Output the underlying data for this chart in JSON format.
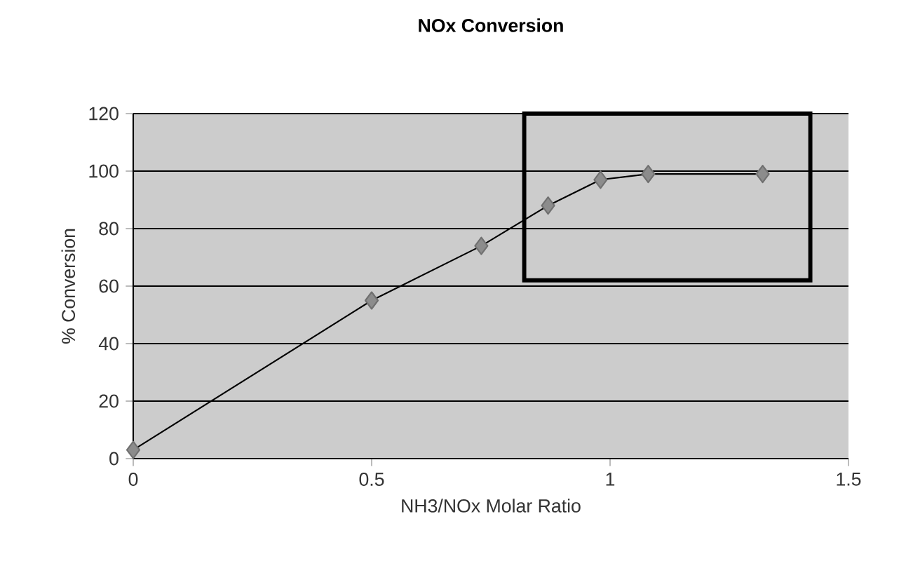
{
  "chart_data": {
    "type": "line",
    "title": "NOx Conversion",
    "xlabel": "NH3/NOx Molar Ratio",
    "ylabel": "% Conversion",
    "x": [
      0,
      0.5,
      0.73,
      0.87,
      0.98,
      1.08,
      1.32
    ],
    "series": [
      {
        "color": "#8c8c8c",
        "values": [
          3,
          55,
          74,
          88,
          97,
          99,
          99
        ]
      }
    ],
    "xlim": [
      0,
      1.5
    ],
    "ylim": [
      0,
      120
    ],
    "xticks": [
      0,
      0.5,
      1,
      1.5
    ],
    "yticks": [
      0,
      20,
      40,
      60,
      80,
      100,
      120
    ],
    "grid": "y",
    "marker": "diamond",
    "line_style": "solid"
  }
}
